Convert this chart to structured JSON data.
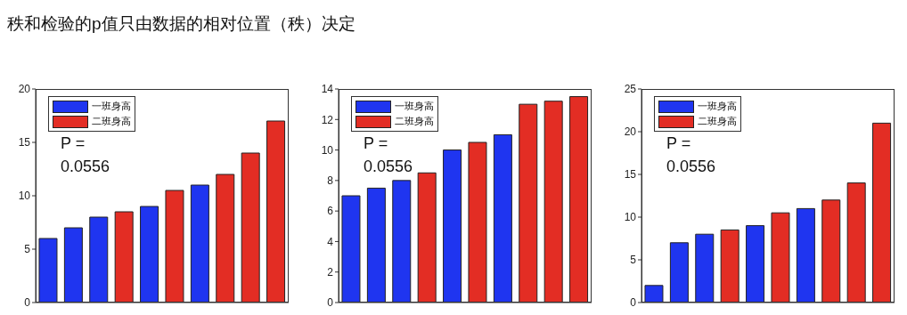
{
  "chart_data": [
    {
      "type": "bar",
      "title": "秩和检验的p值只由数据的相对位置（秩）决定",
      "categories": [
        null,
        null,
        null,
        null,
        null,
        null,
        null,
        null,
        null,
        null
      ],
      "stacked": true,
      "legend": "top left",
      "tick_labels": "y",
      "annotations": [
        "P = 0.0556"
      ],
      "ylim": [
        0,
        20
      ],
      "yticks": [
        0,
        5,
        10,
        15,
        20
      ],
      "series": [
        {
          "name": "一班身高",
          "color": "#1f35f0",
          "values": [
            6,
            7,
            8,
            null,
            9,
            null,
            11,
            null,
            null,
            null
          ]
        },
        {
          "name": "二班身高",
          "color": "#e32d24",
          "values": [
            null,
            null,
            null,
            8.5,
            null,
            10.5,
            null,
            12,
            14,
            17
          ]
        }
      ]
    },
    {
      "type": "bar",
      "categories": [
        null,
        null,
        null,
        null,
        null,
        null,
        null,
        null,
        null,
        null
      ],
      "stacked": true,
      "legend": "top left",
      "tick_labels": "y",
      "annotations": [
        "P = 0.0556"
      ],
      "ylim": [
        0,
        14
      ],
      "yticks": [
        0,
        2,
        4,
        6,
        8,
        10,
        12,
        14
      ],
      "series": [
        {
          "name": "一班身高",
          "color": "#1f35f0",
          "values": [
            7,
            7.5,
            8,
            null,
            10,
            null,
            11,
            null,
            null,
            null
          ]
        },
        {
          "name": "二班身高",
          "color": "#e32d24",
          "values": [
            null,
            null,
            null,
            8.5,
            null,
            10.5,
            null,
            13,
            13.2,
            13.5
          ]
        }
      ]
    },
    {
      "type": "bar",
      "categories": [
        null,
        null,
        null,
        null,
        null,
        null,
        null,
        null,
        null,
        null
      ],
      "stacked": true,
      "legend": "top left",
      "tick_labels": "y",
      "annotations": [
        "P = 0.0556"
      ],
      "ylim": [
        0,
        25
      ],
      "yticks": [
        0,
        5,
        10,
        15,
        20,
        25
      ],
      "series": [
        {
          "name": "一班身高",
          "color": "#1f35f0",
          "values": [
            2,
            7,
            8,
            null,
            9,
            null,
            11,
            null,
            null,
            null
          ]
        },
        {
          "name": "二班身高",
          "color": "#e32d24",
          "values": [
            null,
            null,
            null,
            8.5,
            null,
            10.5,
            null,
            12,
            14,
            21
          ]
        }
      ]
    }
  ]
}
